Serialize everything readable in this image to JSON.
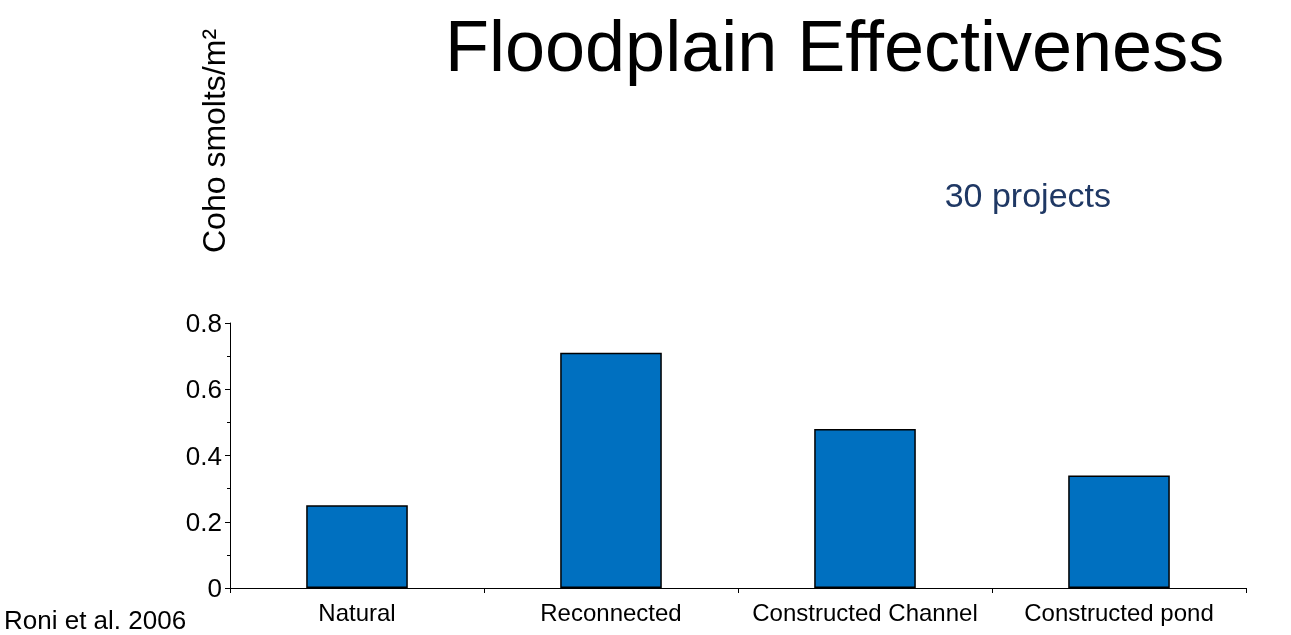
{
  "chart_data": {
    "type": "bar",
    "title": "Floodplain Effectiveness",
    "ylabel": "Coho smolts/m²",
    "categories": [
      "Natural",
      "Reconnected",
      "Constructed Channel",
      "Constructed pond"
    ],
    "values": [
      0.25,
      0.71,
      0.48,
      0.34
    ],
    "color": "#0070c0",
    "ylim": [
      0,
      0.8
    ],
    "yticks": [
      0,
      0.2,
      0.4,
      0.6,
      0.8
    ],
    "grid": false,
    "annotations": [
      "30 projects",
      "Roni et al. 2006"
    ]
  }
}
